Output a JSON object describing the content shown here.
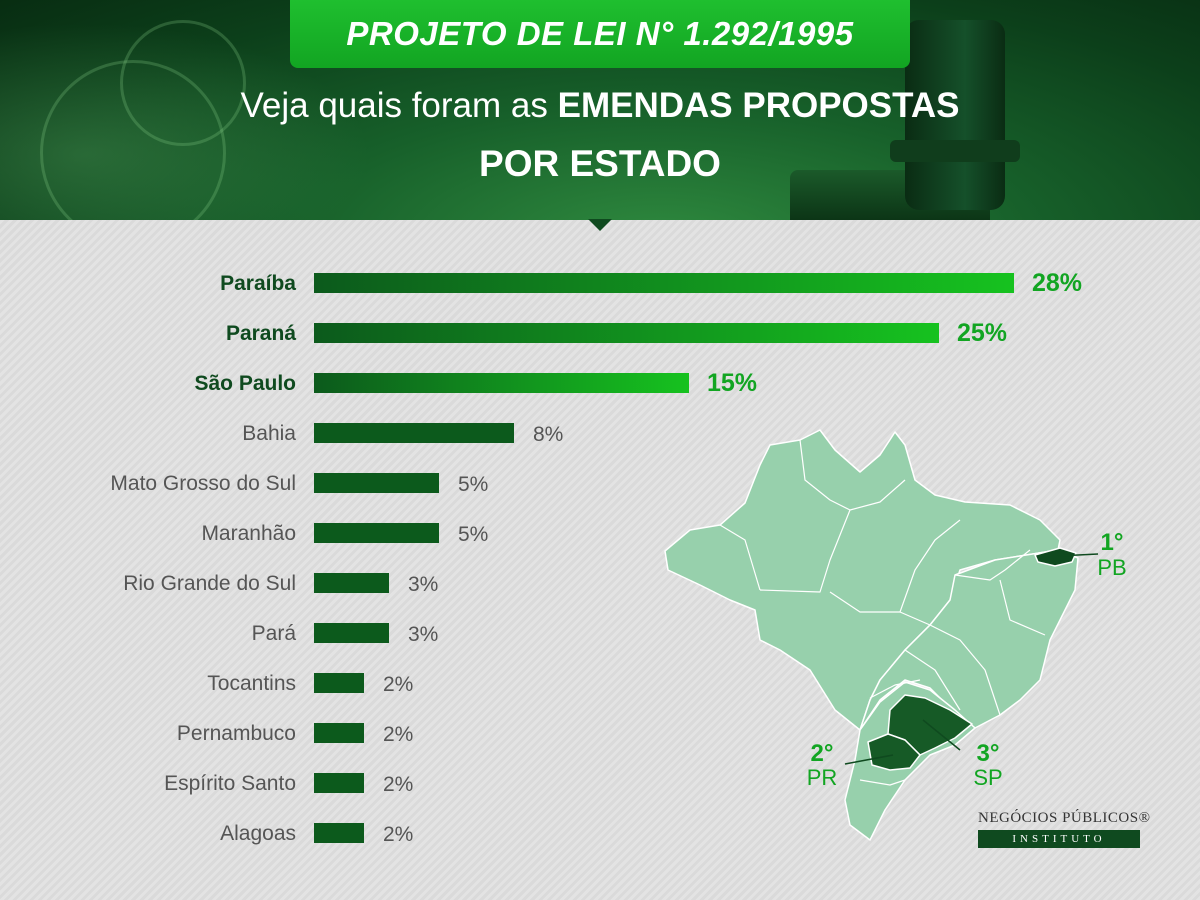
{
  "header": {
    "title": "PROJETO DE LEI N° 1.292/1995",
    "subtitle_light": "Veja quais foram as",
    "subtitle_bold": "EMENDAS PROPOSTAS",
    "subtitle_line2": "POR ESTADO"
  },
  "colors": {
    "accent": "#12a522",
    "bar_dark": "#0c5a1c",
    "bar_light": "#16c21f",
    "map_fill": "#97d0ac",
    "map_highlight_1": "#0f4a1f",
    "map_highlight_23": "#165a26",
    "label_dark": "#0f4a1f",
    "label_gray": "#555555"
  },
  "chart_data": {
    "type": "bar",
    "orientation": "horizontal",
    "categories": [
      "Paraíba",
      "Paraná",
      "São Paulo",
      "Bahia",
      "Mato Grosso do Sul",
      "Maranhão",
      "Rio Grande do Sul",
      "Pará",
      "Tocantins",
      "Pernambuco",
      "Espírito Santo",
      "Alagoas"
    ],
    "values": [
      28,
      25,
      15,
      8,
      5,
      5,
      3,
      3,
      2,
      2,
      2,
      2
    ],
    "value_labels": [
      "28%",
      "25%",
      "15%",
      "8%",
      "5%",
      "5%",
      "3%",
      "3%",
      "2%",
      "2%",
      "2%",
      "2%"
    ],
    "highlighted": [
      true,
      true,
      true,
      false,
      false,
      false,
      false,
      false,
      false,
      false,
      false,
      false
    ],
    "unit": "%",
    "xlim": [
      0,
      28
    ],
    "grid": false,
    "legend": "none"
  },
  "map": {
    "ranks": [
      {
        "rank": "1°",
        "state": "PB"
      },
      {
        "rank": "2°",
        "state": "PR"
      },
      {
        "rank": "3°",
        "state": "SP"
      }
    ]
  },
  "logo": {
    "name": "NEGÓCIOS PÚBLICOS®",
    "subtitle": "INSTITUTO"
  }
}
